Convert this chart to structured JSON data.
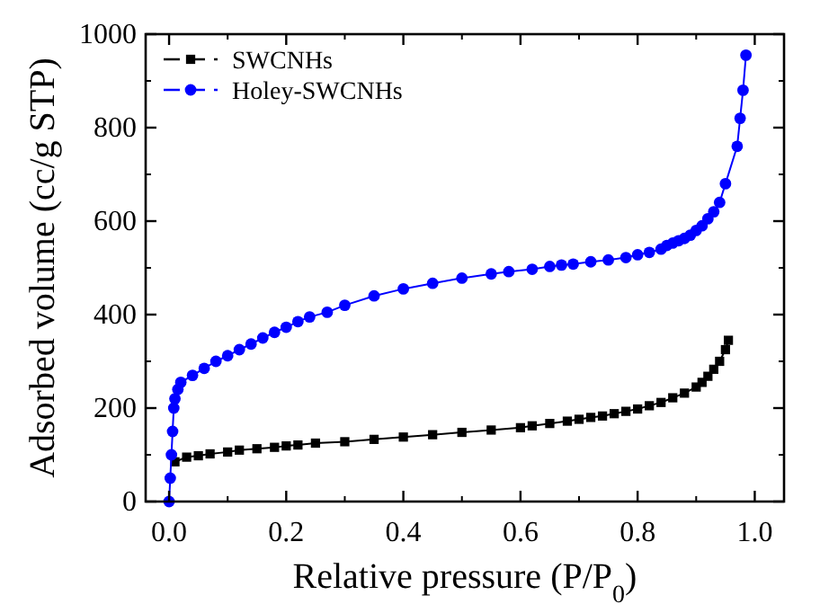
{
  "chart_data": {
    "type": "line",
    "xlabel": "Relative pressure (P/P$_{0}$)",
    "ylabel": "Adsorbed volume (cc/g STP)",
    "xlim": [
      -0.04,
      1.05
    ],
    "ylim": [
      0,
      1000
    ],
    "xticks": [
      {
        "value": 0,
        "label": "0.0"
      },
      {
        "value": 0.2,
        "label": "0.2"
      },
      {
        "value": 0.4,
        "label": "0.4"
      },
      {
        "value": 0.6,
        "label": "0.6"
      },
      {
        "value": 0.8,
        "label": "0.8"
      },
      {
        "value": 1,
        "label": "1.0"
      }
    ],
    "yticks": [
      0,
      200,
      400,
      600,
      800,
      1000
    ],
    "legend": "top left",
    "grid": false,
    "line_style": "solid",
    "series": [
      {
        "name": "SWCNHs",
        "color": "#000000",
        "marker": "square",
        "x": [
          0.01,
          0.03,
          0.05,
          0.07,
          0.1,
          0.12,
          0.15,
          0.18,
          0.2,
          0.22,
          0.25,
          0.3,
          0.35,
          0.4,
          0.45,
          0.5,
          0.55,
          0.6,
          0.62,
          0.65,
          0.68,
          0.7,
          0.72,
          0.74,
          0.76,
          0.78,
          0.8,
          0.82,
          0.84,
          0.86,
          0.88,
          0.9,
          0.91,
          0.92,
          0.93,
          0.94,
          0.95,
          0.955
        ],
        "values": [
          85,
          95,
          98,
          102,
          106,
          110,
          113,
          116,
          119,
          121,
          125,
          128,
          133,
          138,
          143,
          148,
          153,
          158,
          162,
          167,
          172,
          176,
          180,
          183,
          188,
          193,
          198,
          205,
          212,
          222,
          232,
          245,
          255,
          268,
          283,
          300,
          325,
          345
        ]
      },
      {
        "name": "Holey-SWCNHs",
        "color": "#0000ff",
        "marker": "circle",
        "x": [
          0.0,
          0.002,
          0.004,
          0.006,
          0.008,
          0.01,
          0.015,
          0.02,
          0.04,
          0.06,
          0.08,
          0.1,
          0.12,
          0.14,
          0.16,
          0.18,
          0.2,
          0.22,
          0.24,
          0.27,
          0.3,
          0.35,
          0.4,
          0.45,
          0.5,
          0.55,
          0.58,
          0.62,
          0.65,
          0.67,
          0.69,
          0.72,
          0.75,
          0.78,
          0.8,
          0.82,
          0.84,
          0.85,
          0.86,
          0.87,
          0.88,
          0.89,
          0.9,
          0.91,
          0.92,
          0.93,
          0.94,
          0.95,
          0.97,
          0.975,
          0.98,
          0.985
        ],
        "values": [
          0,
          50,
          100,
          150,
          200,
          220,
          240,
          255,
          270,
          285,
          300,
          312,
          325,
          337,
          350,
          362,
          373,
          385,
          395,
          405,
          420,
          440,
          455,
          467,
          478,
          487,
          492,
          497,
          503,
          506,
          508,
          513,
          517,
          522,
          528,
          533,
          540,
          548,
          553,
          558,
          563,
          570,
          580,
          590,
          605,
          620,
          640,
          680,
          760,
          820,
          880,
          955
        ]
      }
    ]
  }
}
